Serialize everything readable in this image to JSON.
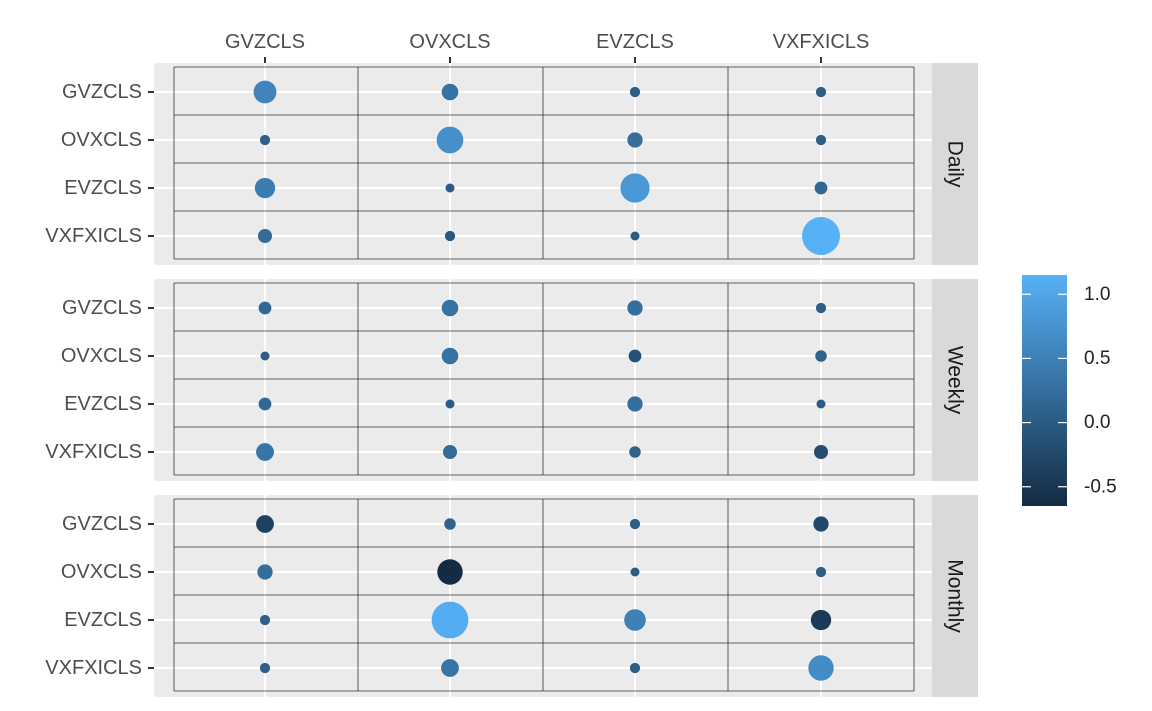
{
  "chart_data": {
    "type": "scatter",
    "subtype": "faceted bubble matrix (size and color encode value)",
    "x_categories": [
      "GVZCLS",
      "OVXCLS",
      "EVZCLS",
      "VXFXICLS"
    ],
    "y_categories": [
      "GVZCLS",
      "OVXCLS",
      "EVZCLS",
      "VXFXICLS"
    ],
    "facet_orientation": "rows, strip on right",
    "grid": true,
    "legend": {
      "type": "colorbar",
      "placement": "right",
      "ticks": [
        "1.0",
        "0.5",
        "0.0",
        "-0.5"
      ],
      "range": [
        -0.65,
        1.15
      ],
      "color_low": "#132B43",
      "color_high": "#56B1F7"
    },
    "facets": [
      {
        "label": "Daily",
        "values": [
          [
            0.55,
            0.3,
            0.05,
            0.05
          ],
          [
            0.05,
            0.7,
            0.25,
            0.05
          ],
          [
            0.45,
            0.0,
            0.8,
            0.15
          ],
          [
            0.2,
            -0.05,
            0.0,
            1.15
          ]
        ]
      },
      {
        "label": "Weekly",
        "values": [
          [
            0.15,
            0.3,
            0.25,
            0.05
          ],
          [
            0.0,
            0.3,
            -0.15,
            0.1
          ],
          [
            0.15,
            0.0,
            0.25,
            0.0
          ],
          [
            0.35,
            0.2,
            0.1,
            -0.2
          ]
        ]
      },
      {
        "label": "Monthly",
        "values": [
          [
            -0.35,
            0.1,
            0.05,
            -0.25
          ],
          [
            0.25,
            -0.65,
            0.0,
            0.05
          ],
          [
            0.05,
            1.1,
            0.5,
            -0.45
          ],
          [
            0.05,
            0.35,
            0.05,
            0.65
          ]
        ]
      }
    ]
  }
}
